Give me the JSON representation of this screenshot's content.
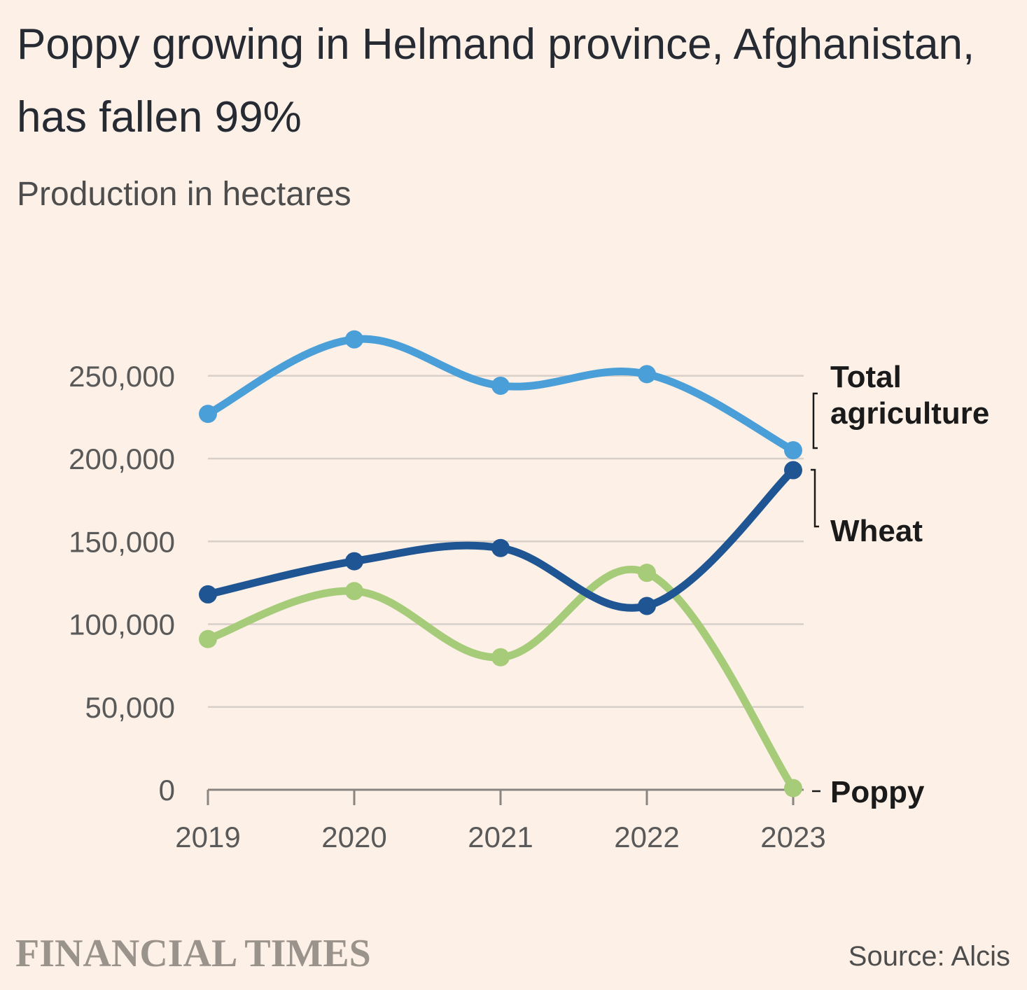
{
  "header": {
    "title": "Poppy growing in Helmand province, Afghanistan, has fallen 99%",
    "subtitle": "Production in hectares"
  },
  "footer": {
    "brand": "FINANCIAL TIMES",
    "source": "Source: Alcis"
  },
  "colors": {
    "total": "#4a9fd8",
    "wheat": "#1f5593",
    "poppy": "#a6cc7a",
    "grid": "#d7cfc8",
    "axis": "#8a8580"
  },
  "chart_data": {
    "type": "line",
    "title": "Poppy growing in Helmand province, Afghanistan, has fallen 99%",
    "subtitle": "Production in hectares",
    "x": [
      "2019",
      "2020",
      "2021",
      "2022",
      "2023"
    ],
    "y_ticks": [
      "0",
      "50,000",
      "100,000",
      "150,000",
      "200,000",
      "250,000"
    ],
    "ylim": [
      0,
      250000
    ],
    "grid": true,
    "legend": "direct labels at right end of lines",
    "series": [
      {
        "name": "Total agriculture",
        "label_lines": [
          "Total",
          "agriculture"
        ],
        "color": "#4a9fd8",
        "values": [
          227000,
          272000,
          244000,
          251000,
          205000
        ]
      },
      {
        "name": "Wheat",
        "label_lines": [
          "Wheat"
        ],
        "color": "#1f5593",
        "values": [
          118000,
          138000,
          146000,
          111000,
          193000
        ]
      },
      {
        "name": "Poppy",
        "label_lines": [
          "Poppy"
        ],
        "color": "#a6cc7a",
        "values": [
          91000,
          120000,
          80000,
          131000,
          1000
        ]
      }
    ]
  }
}
